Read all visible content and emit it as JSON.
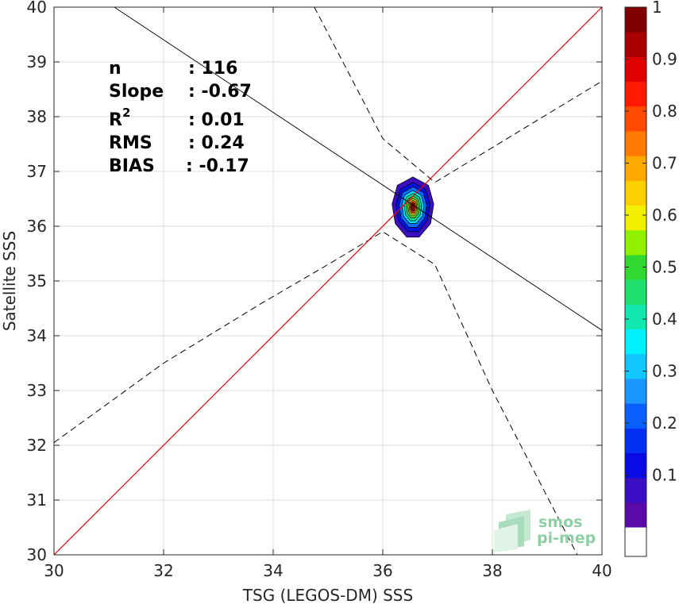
{
  "chart_data": {
    "type": "scatter",
    "title": "",
    "xlabel": "TSG (LEGOS-DM) SSS",
    "ylabel": "Satellite SSS",
    "xlim": [
      30,
      40
    ],
    "ylim": [
      30,
      40
    ],
    "xticks": [
      30,
      32,
      34,
      36,
      38,
      40
    ],
    "yticks": [
      30,
      31,
      32,
      33,
      34,
      35,
      36,
      37,
      38,
      39,
      40
    ],
    "grid": true,
    "stats": [
      {
        "label": "n",
        "value": ": 116"
      },
      {
        "label": "Slope",
        "value": ": -0.67"
      },
      {
        "label": "R",
        "sup": "2",
        "value": ": 0.01"
      },
      {
        "label": "RMS",
        "value": ": 0.24"
      },
      {
        "label": "BIAS",
        "value": ": -0.17"
      }
    ],
    "identity_line": {
      "color": "#ff0000",
      "points": [
        [
          30,
          30
        ],
        [
          40,
          40
        ]
      ]
    },
    "regression_line": {
      "color": "#000000",
      "points": [
        [
          31.1,
          40
        ],
        [
          40,
          34.1
        ]
      ]
    },
    "confidence_bounds": [
      {
        "points": [
          [
            34.75,
            40
          ],
          [
            36.0,
            37.6
          ],
          [
            36.95,
            36.8
          ],
          [
            40,
            38.65
          ]
        ]
      },
      {
        "points": [
          [
            30,
            32.05
          ],
          [
            32,
            33.5
          ],
          [
            33.8,
            34.6
          ],
          [
            35.0,
            35.3
          ],
          [
            36.0,
            35.9
          ],
          [
            36.95,
            35.3
          ],
          [
            38.0,
            33.0
          ],
          [
            39.55,
            30.0
          ]
        ]
      }
    ],
    "density": {
      "center": [
        36.55,
        36.35
      ],
      "levels": [
        {
          "value": 0.05,
          "color": "#3b0fc0",
          "halfwidth": 0.38,
          "halfheight": 0.55
        },
        {
          "value": 0.15,
          "color": "#0016e0",
          "halfwidth": 0.31,
          "halfheight": 0.45
        },
        {
          "value": 0.25,
          "color": "#0a6cff",
          "halfwidth": 0.25,
          "halfheight": 0.37
        },
        {
          "value": 0.35,
          "color": "#00e6ff",
          "halfwidth": 0.2,
          "halfheight": 0.3
        },
        {
          "value": 0.45,
          "color": "#00e090",
          "halfwidth": 0.16,
          "halfheight": 0.25
        },
        {
          "value": 0.55,
          "color": "#60e030",
          "halfwidth": 0.12,
          "halfheight": 0.2
        },
        {
          "value": 0.65,
          "color": "#f0f000",
          "halfwidth": 0.09,
          "halfheight": 0.16
        },
        {
          "value": 0.75,
          "color": "#ffa000",
          "halfwidth": 0.07,
          "halfheight": 0.13
        },
        {
          "value": 0.85,
          "color": "#ff2000",
          "halfwidth": 0.05,
          "halfheight": 0.1
        },
        {
          "value": 0.95,
          "color": "#8b0000",
          "halfwidth": 0.03,
          "halfheight": 0.07
        }
      ]
    },
    "colorbar": {
      "min": 0,
      "max": 1,
      "ticks": [
        "0.1",
        "0.2",
        "0.3",
        "0.4",
        "0.5",
        "0.6",
        "0.7",
        "0.8",
        "0.9",
        "1"
      ],
      "bottom_color": "#ffffff",
      "colors": [
        "#5a0aa8",
        "#3a0ec2",
        "#0a0ae6",
        "#0030f0",
        "#0a60ff",
        "#1a98ff",
        "#10c8ff",
        "#00f0ff",
        "#10e8b0",
        "#20e070",
        "#30d830",
        "#90f000",
        "#f0f000",
        "#ffd000",
        "#ffa800",
        "#ff7a00",
        "#ff4a00",
        "#ff1a00",
        "#e00000",
        "#a80000",
        "#800000"
      ]
    }
  },
  "logo": {
    "line1": "smos",
    "line2": "pi-mep"
  }
}
